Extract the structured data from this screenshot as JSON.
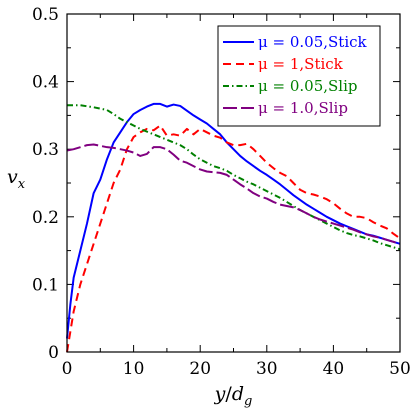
{
  "chart_data": {
    "type": "line",
    "title": "",
    "xlabel": "y/d_g",
    "ylabel": "v_x",
    "xlim": [
      0,
      50
    ],
    "ylim": [
      0,
      0.5
    ],
    "xticks": [
      0,
      10,
      20,
      30,
      40,
      50
    ],
    "yticks": [
      0,
      0.1,
      0.2,
      0.3,
      0.4,
      0.5
    ],
    "xtick_labels": [
      "0",
      "10",
      "20",
      "30",
      "40",
      "50"
    ],
    "ytick_labels": [
      "0",
      "0.1",
      "0.2",
      "0.3",
      "0.4",
      "0.5"
    ],
    "grid": false,
    "legend_position": "top-right",
    "series": [
      {
        "name": "μ = 0.05,Stick",
        "color": "#0000ff",
        "dash": "solid",
        "points": [
          [
            0,
            0.02
          ],
          [
            0.5,
            0.07
          ],
          [
            1,
            0.11
          ],
          [
            2,
            0.15
          ],
          [
            3,
            0.19
          ],
          [
            4,
            0.235
          ],
          [
            5,
            0.255
          ],
          [
            6,
            0.285
          ],
          [
            7,
            0.31
          ],
          [
            8,
            0.325
          ],
          [
            9,
            0.34
          ],
          [
            10,
            0.352
          ],
          [
            11,
            0.358
          ],
          [
            12,
            0.363
          ],
          [
            13,
            0.367
          ],
          [
            14,
            0.367
          ],
          [
            15,
            0.363
          ],
          [
            16,
            0.366
          ],
          [
            17,
            0.364
          ],
          [
            18,
            0.357
          ],
          [
            19,
            0.35
          ],
          [
            20,
            0.344
          ],
          [
            21,
            0.338
          ],
          [
            22,
            0.33
          ],
          [
            23,
            0.322
          ],
          [
            24,
            0.31
          ],
          [
            25,
            0.3
          ],
          [
            26,
            0.29
          ],
          [
            27,
            0.282
          ],
          [
            28,
            0.275
          ],
          [
            29,
            0.268
          ],
          [
            30,
            0.262
          ],
          [
            31,
            0.255
          ],
          [
            32,
            0.248
          ],
          [
            33,
            0.24
          ],
          [
            34,
            0.232
          ],
          [
            35,
            0.225
          ],
          [
            36,
            0.218
          ],
          [
            37,
            0.212
          ],
          [
            38,
            0.206
          ],
          [
            39,
            0.2
          ],
          [
            40,
            0.195
          ],
          [
            41,
            0.19
          ],
          [
            42,
            0.186
          ],
          [
            43,
            0.182
          ],
          [
            44,
            0.178
          ],
          [
            45,
            0.174
          ],
          [
            46,
            0.172
          ],
          [
            47,
            0.169
          ],
          [
            48,
            0.166
          ],
          [
            49,
            0.163
          ],
          [
            50,
            0.16
          ]
        ]
      },
      {
        "name": "μ = 1,Stick",
        "color": "#ff0000",
        "dash": "dashed",
        "points": [
          [
            0,
            0.0
          ],
          [
            1,
            0.06
          ],
          [
            2,
            0.1
          ],
          [
            3,
            0.13
          ],
          [
            4,
            0.16
          ],
          [
            5,
            0.19
          ],
          [
            6,
            0.22
          ],
          [
            7,
            0.25
          ],
          [
            8,
            0.27
          ],
          [
            9,
            0.3
          ],
          [
            10,
            0.318
          ],
          [
            11,
            0.325
          ],
          [
            12,
            0.33
          ],
          [
            13,
            0.328
          ],
          [
            14,
            0.335
          ],
          [
            15,
            0.32
          ],
          [
            16,
            0.322
          ],
          [
            17,
            0.32
          ],
          [
            18,
            0.33
          ],
          [
            19,
            0.322
          ],
          [
            20,
            0.33
          ],
          [
            21,
            0.325
          ],
          [
            22,
            0.32
          ],
          [
            23,
            0.317
          ],
          [
            24,
            0.31
          ],
          [
            25,
            0.306
          ],
          [
            26,
            0.306
          ],
          [
            27,
            0.308
          ],
          [
            28,
            0.3
          ],
          [
            29,
            0.29
          ],
          [
            30,
            0.28
          ],
          [
            31,
            0.272
          ],
          [
            32,
            0.265
          ],
          [
            33,
            0.26
          ],
          [
            34,
            0.25
          ],
          [
            35,
            0.24
          ],
          [
            36,
            0.235
          ],
          [
            37,
            0.233
          ],
          [
            38,
            0.23
          ],
          [
            39,
            0.226
          ],
          [
            40,
            0.22
          ],
          [
            41,
            0.212
          ],
          [
            42,
            0.205
          ],
          [
            43,
            0.2
          ],
          [
            44,
            0.2
          ],
          [
            45,
            0.198
          ],
          [
            46,
            0.192
          ],
          [
            47,
            0.187
          ],
          [
            48,
            0.183
          ],
          [
            49,
            0.175
          ],
          [
            50,
            0.168
          ]
        ]
      },
      {
        "name": "μ = 0.05,Slip",
        "color": "#008000",
        "dash": "dashdot",
        "points": [
          [
            0,
            0.365
          ],
          [
            2,
            0.365
          ],
          [
            4,
            0.362
          ],
          [
            5,
            0.36
          ],
          [
            6,
            0.358
          ],
          [
            7,
            0.352
          ],
          [
            8,
            0.345
          ],
          [
            9,
            0.34
          ],
          [
            10,
            0.335
          ],
          [
            11,
            0.33
          ],
          [
            12,
            0.326
          ],
          [
            13,
            0.322
          ],
          [
            14,
            0.318
          ],
          [
            15,
            0.314
          ],
          [
            16,
            0.31
          ],
          [
            17,
            0.306
          ],
          [
            18,
            0.3
          ],
          [
            19,
            0.292
          ],
          [
            20,
            0.285
          ],
          [
            21,
            0.28
          ],
          [
            22,
            0.275
          ],
          [
            23,
            0.272
          ],
          [
            24,
            0.268
          ],
          [
            25,
            0.262
          ],
          [
            26,
            0.257
          ],
          [
            27,
            0.252
          ],
          [
            28,
            0.248
          ],
          [
            29,
            0.243
          ],
          [
            30,
            0.238
          ],
          [
            31,
            0.233
          ],
          [
            32,
            0.228
          ],
          [
            33,
            0.222
          ],
          [
            34,
            0.216
          ],
          [
            35,
            0.21
          ],
          [
            36,
            0.205
          ],
          [
            37,
            0.2
          ],
          [
            38,
            0.195
          ],
          [
            39,
            0.19
          ],
          [
            40,
            0.185
          ],
          [
            41,
            0.18
          ],
          [
            42,
            0.176
          ],
          [
            43,
            0.173
          ],
          [
            44,
            0.171
          ],
          [
            45,
            0.168
          ],
          [
            46,
            0.165
          ],
          [
            47,
            0.161
          ],
          [
            48,
            0.158
          ],
          [
            49,
            0.155
          ],
          [
            50,
            0.152
          ]
        ]
      },
      {
        "name": "μ = 1.0,Slip",
        "color": "#800080",
        "dash": "longdash",
        "points": [
          [
            0,
            0.298
          ],
          [
            1,
            0.3
          ],
          [
            2,
            0.303
          ],
          [
            3,
            0.306
          ],
          [
            4,
            0.307
          ],
          [
            5,
            0.305
          ],
          [
            6,
            0.303
          ],
          [
            7,
            0.302
          ],
          [
            8,
            0.3
          ],
          [
            9,
            0.298
          ],
          [
            10,
            0.295
          ],
          [
            11,
            0.29
          ],
          [
            12,
            0.293
          ],
          [
            13,
            0.303
          ],
          [
            14,
            0.303
          ],
          [
            15,
            0.3
          ],
          [
            16,
            0.292
          ],
          [
            17,
            0.283
          ],
          [
            18,
            0.28
          ],
          [
            19,
            0.275
          ],
          [
            20,
            0.27
          ],
          [
            21,
            0.267
          ],
          [
            22,
            0.266
          ],
          [
            23,
            0.265
          ],
          [
            24,
            0.262
          ],
          [
            25,
            0.255
          ],
          [
            26,
            0.248
          ],
          [
            27,
            0.242
          ],
          [
            28,
            0.235
          ],
          [
            29,
            0.23
          ],
          [
            30,
            0.227
          ],
          [
            31,
            0.222
          ],
          [
            32,
            0.218
          ],
          [
            33,
            0.216
          ],
          [
            34,
            0.214
          ],
          [
            35,
            0.21
          ],
          [
            36,
            0.205
          ],
          [
            37,
            0.2
          ],
          [
            38,
            0.196
          ],
          [
            39,
            0.193
          ],
          [
            40,
            0.19
          ],
          [
            41,
            0.187
          ],
          [
            42,
            0.184
          ],
          [
            43,
            0.181
          ],
          [
            44,
            0.177
          ],
          [
            45,
            0.174
          ],
          [
            46,
            0.171
          ],
          [
            47,
            0.169
          ],
          [
            48,
            0.166
          ],
          [
            49,
            0.163
          ],
          [
            50,
            0.16
          ]
        ]
      }
    ]
  }
}
